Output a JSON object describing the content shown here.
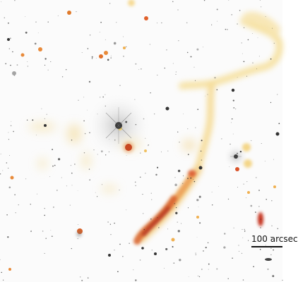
{
  "scale_bar": {
    "label": "100 arcsec"
  },
  "colors": {
    "background": "#fbfbfb",
    "stars": "#2a2a2a",
    "emission_faint": "#f3d27a",
    "emission_mid": "#e58a2a",
    "emission_bright": "#c0281e",
    "scale_bar": "#111111"
  }
}
